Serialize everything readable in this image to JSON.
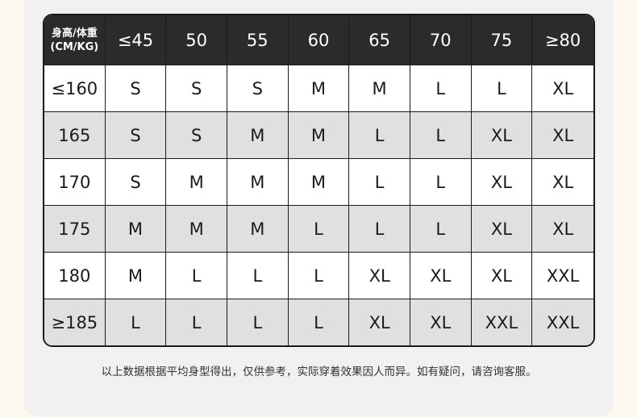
{
  "table": {
    "corner_label_line1": "身高/体重",
    "corner_label_line2": "(CM/KG)",
    "weight_headers": [
      "≤45",
      "50",
      "55",
      "60",
      "65",
      "70",
      "75",
      "≥80"
    ],
    "rows": [
      {
        "height": "≤160",
        "sizes": [
          "S",
          "S",
          "S",
          "M",
          "M",
          "L",
          "L",
          "XL"
        ]
      },
      {
        "height": "165",
        "sizes": [
          "S",
          "S",
          "M",
          "M",
          "L",
          "L",
          "XL",
          "XL"
        ]
      },
      {
        "height": "170",
        "sizes": [
          "S",
          "M",
          "M",
          "M",
          "L",
          "L",
          "XL",
          "XL"
        ]
      },
      {
        "height": "175",
        "sizes": [
          "M",
          "M",
          "M",
          "L",
          "L",
          "L",
          "XL",
          "XL"
        ]
      },
      {
        "height": "180",
        "sizes": [
          "M",
          "L",
          "L",
          "L",
          "XL",
          "XL",
          "XL",
          "XXL"
        ]
      },
      {
        "height": "≥185",
        "sizes": [
          "L",
          "L",
          "L",
          "L",
          "XL",
          "XL",
          "XXL",
          "XXL"
        ]
      }
    ]
  },
  "note": "以上数据根据平均身型得出，仅供参考，实际穿着效果因人而异。如有疑问，请咨询客服。",
  "colors": {
    "header_bg": "#2b2b2b",
    "alt_row_bg": "#e0e0e0",
    "panel_bg": "#f1f1f1",
    "page_bg": "#fdf9f0"
  }
}
